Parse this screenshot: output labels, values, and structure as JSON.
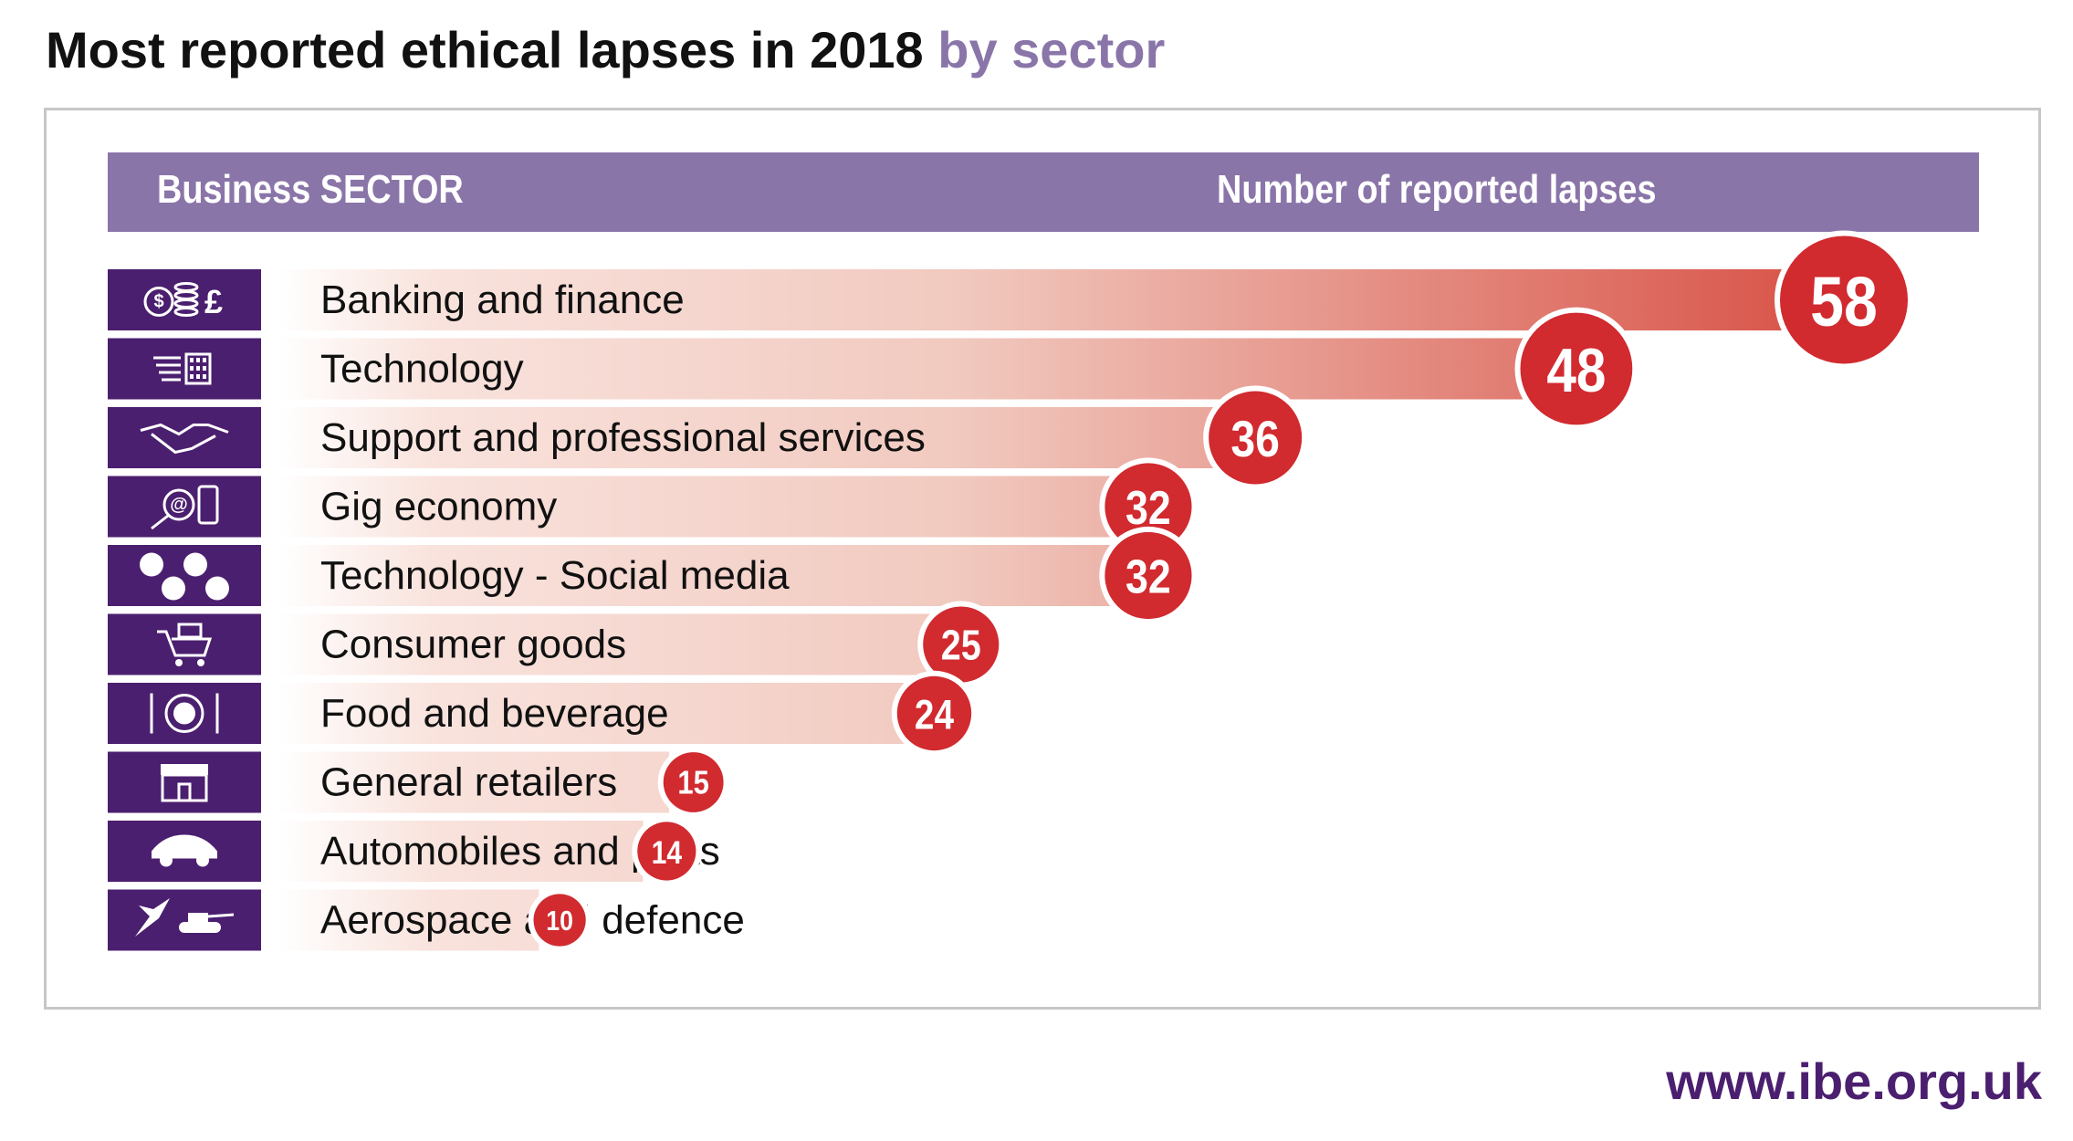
{
  "title": {
    "main": "Most reported ethical lapses in 2018",
    "accent": "by sector"
  },
  "colors": {
    "accent_purple": "#8a75a9",
    "icon_purple": "#4b1f6f",
    "badge_red": "#d12a2f",
    "bar_light": "#f9e3dd",
    "bar_dark": "#d9574c"
  },
  "footer": {
    "url": "www.ibe.org.uk"
  },
  "chart_data": {
    "type": "bar",
    "orientation": "horizontal",
    "column_headers": [
      "Business SECTOR",
      "Number of reported lapses"
    ],
    "categories": [
      "Banking and finance",
      "Technology",
      "Support and professional services",
      "Gig economy",
      "Technology - Social media",
      "Consumer goods",
      "Food and beverage",
      "General retailers",
      "Automobiles and parts",
      "Aerospace and defence"
    ],
    "values": [
      58,
      48,
      36,
      32,
      32,
      25,
      24,
      15,
      14,
      10
    ],
    "icons": [
      "coins-pound-icon",
      "technology-keypad-icon",
      "handshake-icon",
      "magnifier-phone-icon",
      "social-media-icon",
      "shopping-cart-icon",
      "plate-cutlery-icon",
      "shopfront-icon",
      "car-icon",
      "jet-tank-icon"
    ],
    "xlim": [
      0,
      58
    ],
    "grid": false,
    "legend": "none"
  }
}
